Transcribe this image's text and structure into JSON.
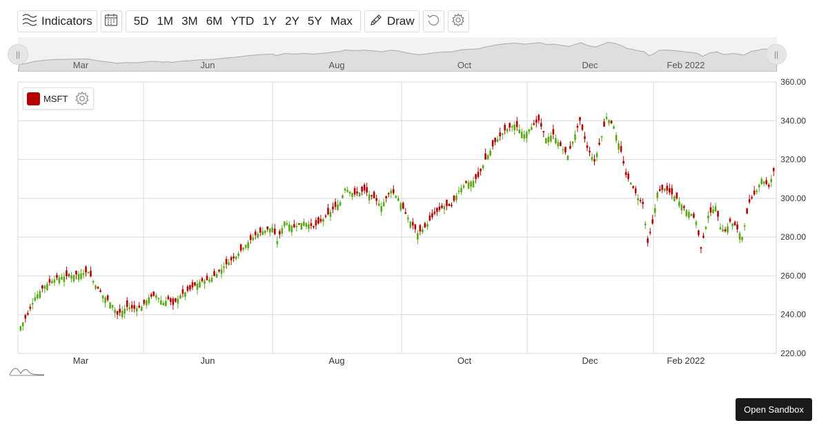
{
  "toolbar": {
    "indicators_label": "Indicators",
    "ranges": [
      "5D",
      "1M",
      "3M",
      "6M",
      "YTD",
      "1Y",
      "2Y",
      "5Y",
      "Max"
    ],
    "draw_label": "Draw"
  },
  "navigator": {
    "labels": [
      "Mar",
      "Jun",
      "Aug",
      "Oct",
      "Dec",
      "Feb 2022"
    ]
  },
  "legend": {
    "symbol": "MSFT"
  },
  "sandbox_button": "Open Sandbox",
  "colors": {
    "up": "#5aa816",
    "down": "#b30000",
    "legend_swatch": "#b30000"
  },
  "chart_data": {
    "type": "candlestick",
    "symbol": "MSFT",
    "ylim": [
      220,
      360
    ],
    "yticks": [
      "360.00",
      "340.00",
      "320.00",
      "300.00",
      "280.00",
      "260.00",
      "240.00",
      "220.00"
    ],
    "xticks": [
      "Mar",
      "Jun",
      "Aug",
      "Oct",
      "Dec",
      "Feb 2022"
    ],
    "grid": true,
    "y_axis_position": "right",
    "close": [
      [
        0,
        234
      ],
      [
        3,
        240
      ],
      [
        6,
        249
      ],
      [
        10,
        255
      ],
      [
        15,
        259
      ],
      [
        20,
        260
      ],
      [
        24,
        261
      ],
      [
        28,
        262
      ],
      [
        31,
        255
      ],
      [
        34,
        250
      ],
      [
        38,
        245
      ],
      [
        40,
        240
      ],
      [
        44,
        244
      ],
      [
        47,
        243
      ],
      [
        50,
        244
      ],
      [
        53,
        249
      ],
      [
        56,
        250
      ],
      [
        59,
        246
      ],
      [
        61,
        248
      ],
      [
        63,
        245
      ],
      [
        66,
        250
      ],
      [
        70,
        253
      ],
      [
        74,
        257
      ],
      [
        78,
        258
      ],
      [
        81,
        261
      ],
      [
        85,
        266
      ],
      [
        89,
        270
      ],
      [
        93,
        276
      ],
      [
        97,
        281
      ],
      [
        100,
        283
      ],
      [
        104,
        285
      ],
      [
        106,
        278
      ],
      [
        109,
        288
      ],
      [
        113,
        285
      ],
      [
        117,
        288
      ],
      [
        121,
        285
      ],
      [
        124,
        288
      ],
      [
        128,
        293
      ],
      [
        132,
        298
      ],
      [
        134,
        305
      ],
      [
        138,
        302
      ],
      [
        142,
        304
      ],
      [
        146,
        300
      ],
      [
        149,
        296
      ],
      [
        153,
        304
      ],
      [
        156,
        300
      ],
      [
        159,
        292
      ],
      [
        162,
        286
      ],
      [
        164,
        282
      ],
      [
        167,
        285
      ],
      [
        171,
        292
      ],
      [
        175,
        296
      ],
      [
        178,
        296
      ],
      [
        181,
        304
      ],
      [
        184,
        308
      ],
      [
        187,
        309
      ],
      [
        189,
        311
      ],
      [
        192,
        320
      ],
      [
        196,
        329
      ],
      [
        200,
        335
      ],
      [
        204,
        338
      ],
      [
        208,
        333
      ],
      [
        212,
        338
      ],
      [
        214,
        340
      ],
      [
        217,
        331
      ],
      [
        220,
        333
      ],
      [
        223,
        327
      ],
      [
        226,
        322
      ],
      [
        229,
        333
      ],
      [
        231,
        340
      ],
      [
        234,
        326
      ],
      [
        237,
        319
      ],
      [
        240,
        332
      ],
      [
        242,
        342
      ],
      [
        245,
        337
      ],
      [
        248,
        324
      ],
      [
        250,
        312
      ],
      [
        252,
        308
      ],
      [
        255,
        300
      ],
      [
        257,
        297
      ],
      [
        259,
        277
      ],
      [
        261,
        287
      ],
      [
        263,
        303
      ],
      [
        266,
        305
      ],
      [
        268,
        303
      ],
      [
        271,
        300
      ],
      [
        274,
        295
      ],
      [
        277,
        292
      ],
      [
        279,
        288
      ],
      [
        281,
        274
      ],
      [
        284,
        291
      ],
      [
        287,
        296
      ],
      [
        289,
        285
      ],
      [
        291,
        283
      ],
      [
        293,
        288
      ],
      [
        295,
        286
      ],
      [
        298,
        280
      ],
      [
        301,
        298
      ],
      [
        304,
        304
      ],
      [
        306,
        310
      ],
      [
        309,
        306
      ],
      [
        311,
        314
      ]
    ]
  }
}
